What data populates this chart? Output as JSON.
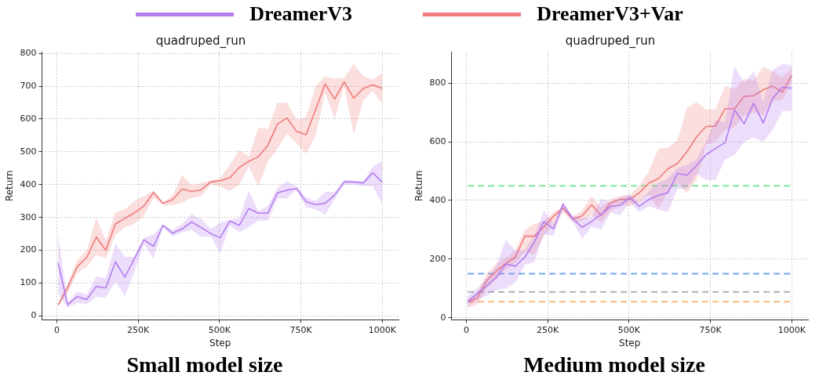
{
  "chart_data": [
    {
      "type": "line",
      "title": "quadruped_run",
      "xlabel": "Step",
      "ylabel": "Return",
      "legend": "top",
      "grid": true,
      "marker": "none",
      "line_style": "solid",
      "x": [
        4000,
        33300,
        62600,
        91900,
        121200,
        150500,
        179800,
        209100,
        238400,
        267700,
        297000,
        326300,
        355600,
        384900,
        414200,
        443500,
        472800,
        502100,
        531400,
        560700,
        590000,
        619300,
        648600,
        677900,
        707200,
        736500,
        765800,
        795100,
        824400,
        853700,
        883000,
        912300,
        941600,
        970900,
        1000000
      ],
      "xlim": [
        -46000,
        1050000
      ],
      "ylim": [
        -12,
        805
      ],
      "xticks": [
        0,
        {
          "value": 250000,
          "label": "250K"
        },
        {
          "value": 500000,
          "label": "500K"
        },
        {
          "value": 750000,
          "label": "750K"
        },
        {
          "value": 1000000,
          "label": "1000K"
        }
      ],
      "yticks": [
        0,
        100,
        200,
        300,
        400,
        500,
        600,
        700,
        800
      ],
      "series": [
        {
          "name": "DreamerV3",
          "color": "#b57cf0",
          "values": [
            161,
            34,
            59,
            50,
            90,
            85,
            165,
            118,
            175,
            232,
            212,
            276,
            252,
            265,
            286,
            269,
            251,
            238,
            289,
            276,
            327,
            313,
            313,
            375,
            383,
            388,
            348,
            339,
            343,
            368,
            408,
            408,
            405,
            436,
            407
          ],
          "lower": [
            70,
            25,
            40,
            35,
            58,
            55,
            105,
            60,
            135,
            220,
            175,
            270,
            242,
            255,
            262,
            240,
            242,
            190,
            275,
            255,
            270,
            290,
            290,
            358,
            357,
            385,
            330,
            325,
            308,
            355,
            400,
            400,
            395,
            395,
            340
          ],
          "upper": [
            250,
            40,
            75,
            65,
            120,
            115,
            220,
            180,
            180,
            238,
            248,
            278,
            262,
            280,
            310,
            295,
            265,
            285,
            292,
            298,
            382,
            320,
            335,
            390,
            410,
            395,
            362,
            350,
            378,
            378,
            415,
            412,
            410,
            455,
            473
          ]
        },
        {
          "name": "DreamerV3+Var",
          "color": "#f07a7a",
          "values": [
            33,
            87,
            150,
            178,
            240,
            200,
            280,
            297,
            314,
            335,
            376,
            343,
            354,
            387,
            379,
            384,
            408,
            412,
            421,
            452,
            471,
            485,
            520,
            584,
            603,
            562,
            552,
            628,
            707,
            661,
            713,
            663,
            693,
            704,
            693
          ],
          "lower": [
            30,
            70,
            130,
            150,
            185,
            175,
            245,
            270,
            280,
            305,
            360,
            338,
            337,
            345,
            360,
            365,
            400,
            395,
            380,
            400,
            455,
            395,
            470,
            510,
            555,
            525,
            495,
            548,
            680,
            600,
            700,
            555,
            655,
            685,
            645
          ],
          "upper": [
            40,
            100,
            170,
            200,
            300,
            230,
            315,
            325,
            350,
            365,
            382,
            345,
            368,
            430,
            398,
            405,
            412,
            420,
            460,
            505,
            485,
            573,
            570,
            650,
            650,
            598,
            605,
            700,
            730,
            722,
            725,
            768,
            730,
            720,
            740
          ]
        }
      ],
      "annotations": [
        "Small model size"
      ]
    },
    {
      "type": "line",
      "title": "quadruped_run",
      "xlabel": "Step",
      "ylabel": "Return",
      "grid": true,
      "marker": "none",
      "line_style": "solid",
      "x": [
        4000,
        33300,
        62600,
        91900,
        121200,
        150500,
        179800,
        209100,
        238400,
        267700,
        297000,
        326300,
        355600,
        384900,
        414200,
        443500,
        472800,
        502100,
        531400,
        560700,
        590000,
        619300,
        648600,
        677900,
        707200,
        736500,
        765800,
        795100,
        824400,
        853700,
        883000,
        912300,
        941600,
        970900,
        1000000
      ],
      "xlim": [
        -46000,
        1050000
      ],
      "ylim": [
        -7,
        907
      ],
      "xticks": [
        0,
        {
          "value": 250000,
          "label": "250K"
        },
        {
          "value": 500000,
          "label": "500K"
        },
        {
          "value": 750000,
          "label": "750K"
        },
        {
          "value": 1000000,
          "label": "1000K"
        }
      ],
      "yticks": [
        0,
        200,
        400,
        600,
        800
      ],
      "series": [
        {
          "color": "#b57cf0",
          "values": [
            55,
            82,
            109,
            138,
            183,
            176,
            207,
            258,
            328,
            303,
            388,
            339,
            308,
            328,
            352,
            380,
            383,
            410,
            380,
            403,
            417,
            426,
            492,
            486,
            518,
            556,
            577,
            597,
            708,
            661,
            731,
            664,
            748,
            786,
            782
          ],
          "lower": [
            40,
            60,
            75,
            95,
            100,
            120,
            180,
            190,
            285,
            280,
            370,
            330,
            270,
            310,
            300,
            360,
            350,
            395,
            360,
            380,
            370,
            360,
            440,
            440,
            490,
            470,
            470,
            540,
            555,
            600,
            615,
            600,
            640,
            705,
            705
          ],
          "upper": [
            75,
            100,
            135,
            175,
            265,
            230,
            230,
            280,
            365,
            320,
            385,
            350,
            340,
            345,
            405,
            395,
            410,
            420,
            395,
            430,
            460,
            475,
            510,
            520,
            540,
            600,
            675,
            665,
            860,
            800,
            840,
            735,
            845,
            865,
            860
          ]
        },
        {
          "color": "#f07a7a",
          "values": [
            55,
            67,
            127,
            159,
            185,
            207,
            278,
            278,
            310,
            346,
            374,
            337,
            347,
            385,
            349,
            392,
            404,
            403,
            426,
            459,
            474,
            508,
            526,
            566,
            616,
            652,
            653,
            713,
            713,
            755,
            757,
            777,
            790,
            769,
            826
          ],
          "lower": [
            35,
            45,
            100,
            130,
            165,
            185,
            225,
            215,
            280,
            320,
            360,
            325,
            330,
            350,
            325,
            365,
            385,
            380,
            395,
            420,
            370,
            430,
            460,
            425,
            470,
            590,
            600,
            640,
            650,
            690,
            700,
            690,
            740,
            740,
            800
          ],
          "upper": [
            65,
            85,
            150,
            185,
            205,
            230,
            300,
            320,
            330,
            360,
            380,
            345,
            365,
            415,
            375,
            405,
            415,
            420,
            450,
            500,
            575,
            580,
            605,
            715,
            735,
            710,
            710,
            790,
            780,
            815,
            810,
            855,
            840,
            820,
            850
          ]
        }
      ],
      "ref_lines": [
        {
          "axis": "y",
          "value": 450,
          "color": "#7ee8a2",
          "line_style": "dashed"
        },
        {
          "axis": "y",
          "value": 150,
          "color": "#6fa8f2",
          "line_style": "dashed"
        },
        {
          "axis": "y",
          "value": 88,
          "color": "#b0b0b0",
          "line_style": "dashed"
        },
        {
          "axis": "y",
          "value": 55,
          "color": "#f8b87c",
          "line_style": "dashed"
        }
      ],
      "annotations": [
        "Medium model size"
      ]
    }
  ]
}
